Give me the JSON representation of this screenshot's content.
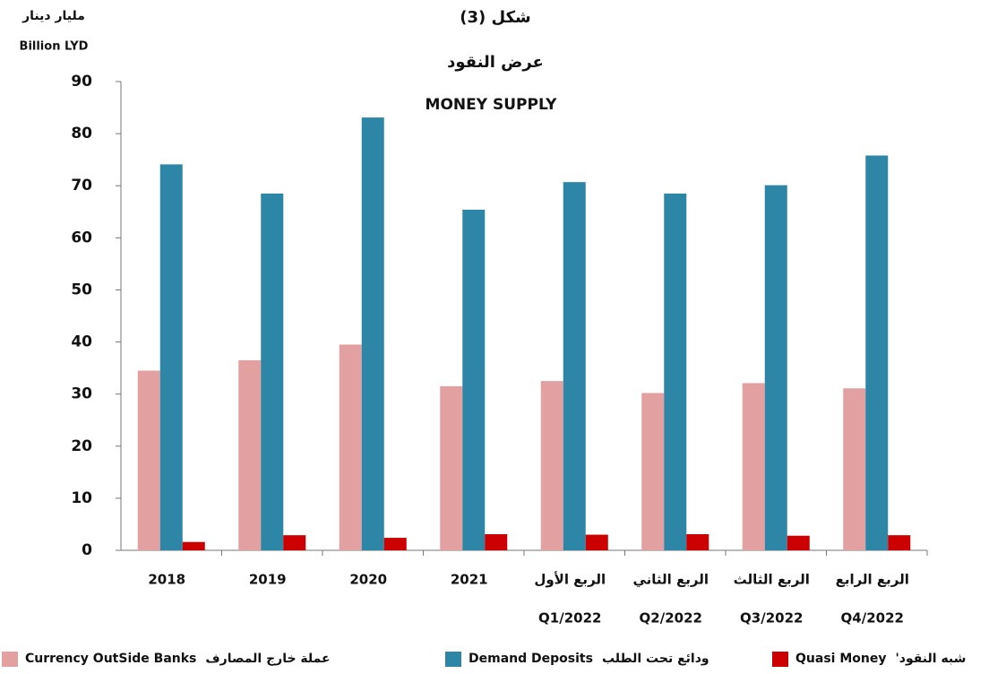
{
  "chart_data": {
    "type": "bar",
    "title": [
      "شكل (3)",
      "عرض النقود",
      "MONEY SUPPLY"
    ],
    "y_label": [
      "مليار دينار",
      "Billion LYD"
    ],
    "categories": [
      [
        "2018"
      ],
      [
        "2019"
      ],
      [
        "2020"
      ],
      [
        "2021"
      ],
      [
        "الربع الأول",
        "Q1/2022"
      ],
      [
        "الربع الثاني",
        "Q2/2022"
      ],
      [
        "الربع الثالث",
        "Q3/2022"
      ],
      [
        "الربع الرابع",
        "Q4/2022"
      ]
    ],
    "series": [
      {
        "name": "Currency OutSide Banks",
        "name_ar": "عملة خارج المصارف",
        "color": "#e3a0a0",
        "values": [
          34.5,
          36.5,
          39.5,
          31.5,
          32.5,
          30.2,
          32.1,
          31.1
        ]
      },
      {
        "name": "Demand Deposits",
        "name_ar": "ودائع تحت الطلب",
        "color": "#2e86a6",
        "values": [
          74.1,
          68.5,
          83.1,
          65.4,
          70.7,
          68.5,
          70.1,
          75.8
        ]
      },
      {
        "name": "Quasi Money",
        "name_ar": "شبه النقود'",
        "color": "#cc0000",
        "values": [
          1.6,
          2.9,
          2.4,
          3.1,
          3.0,
          3.1,
          2.8,
          2.9
        ]
      }
    ],
    "ylim": [
      0,
      90
    ],
    "yticks": [
      0,
      10,
      20,
      30,
      40,
      50,
      60,
      70,
      80,
      90
    ]
  }
}
